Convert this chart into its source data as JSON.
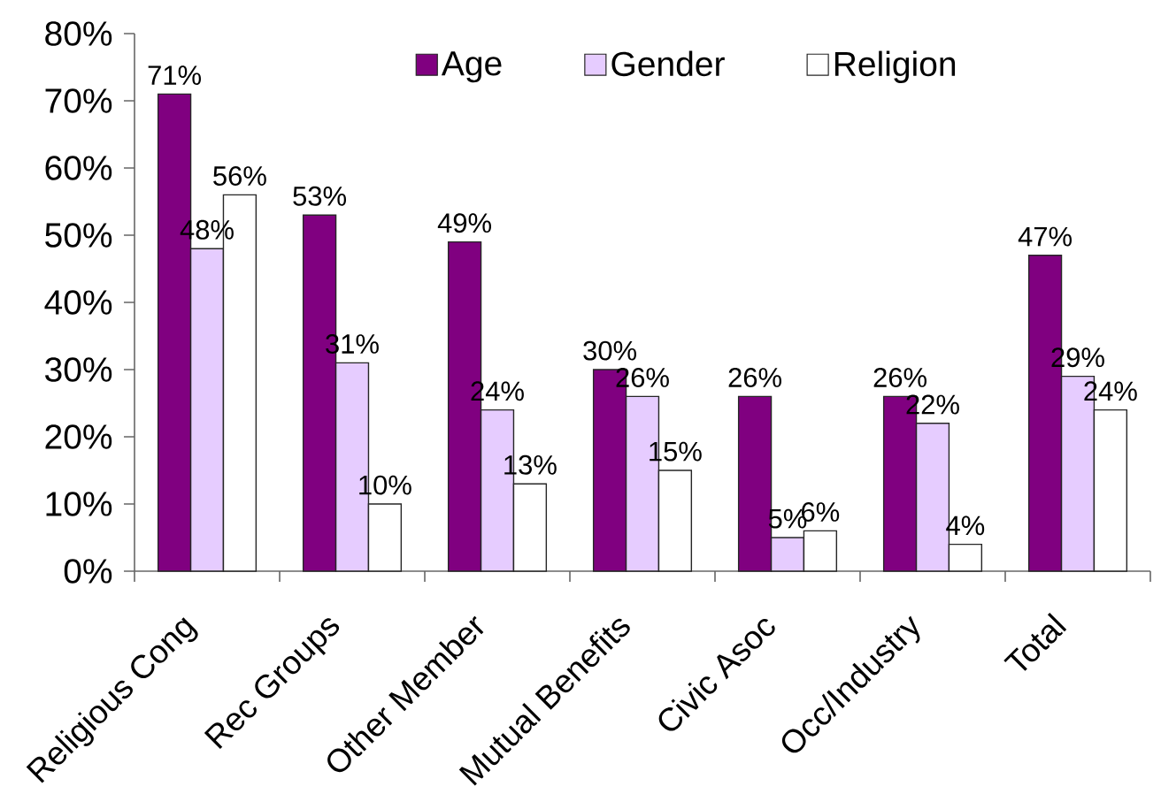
{
  "chart_data": {
    "type": "bar",
    "categories": [
      "Religious Cong",
      "Rec Groups",
      "Other Member",
      "Mutual Benefits",
      "Civic Asoc",
      "Occ/Industry",
      "Total"
    ],
    "series": [
      {
        "name": "Age",
        "color": "#800080",
        "values": [
          71,
          53,
          49,
          30,
          26,
          26,
          47
        ],
        "value_labels": [
          "71%",
          "53%",
          "49%",
          "30%",
          "26%",
          "26%",
          "47%"
        ]
      },
      {
        "name": "Gender",
        "color": "#e6ccff",
        "values": [
          48,
          31,
          24,
          26,
          5,
          22,
          29
        ],
        "value_labels": [
          "48%",
          "31%",
          "24%",
          "26%",
          "5%",
          "22%",
          "29%"
        ]
      },
      {
        "name": "Religion",
        "color": "#ffffff",
        "values": [
          56,
          10,
          13,
          15,
          6,
          4,
          24
        ],
        "value_labels": [
          "56%",
          "10%",
          "13%",
          "15%",
          "6%",
          "4%",
          "24%"
        ]
      }
    ],
    "ylim": [
      0,
      80
    ],
    "yticks": [
      {
        "value": 0,
        "label": "0%"
      },
      {
        "value": 10,
        "label": "10%"
      },
      {
        "value": 20,
        "label": "20%"
      },
      {
        "value": 30,
        "label": "30%"
      },
      {
        "value": 40,
        "label": "40%"
      },
      {
        "value": 50,
        "label": "50%"
      },
      {
        "value": 60,
        "label": "60%"
      },
      {
        "value": 70,
        "label": "70%"
      },
      {
        "value": 80,
        "label": "80%"
      }
    ],
    "legend": "top"
  }
}
